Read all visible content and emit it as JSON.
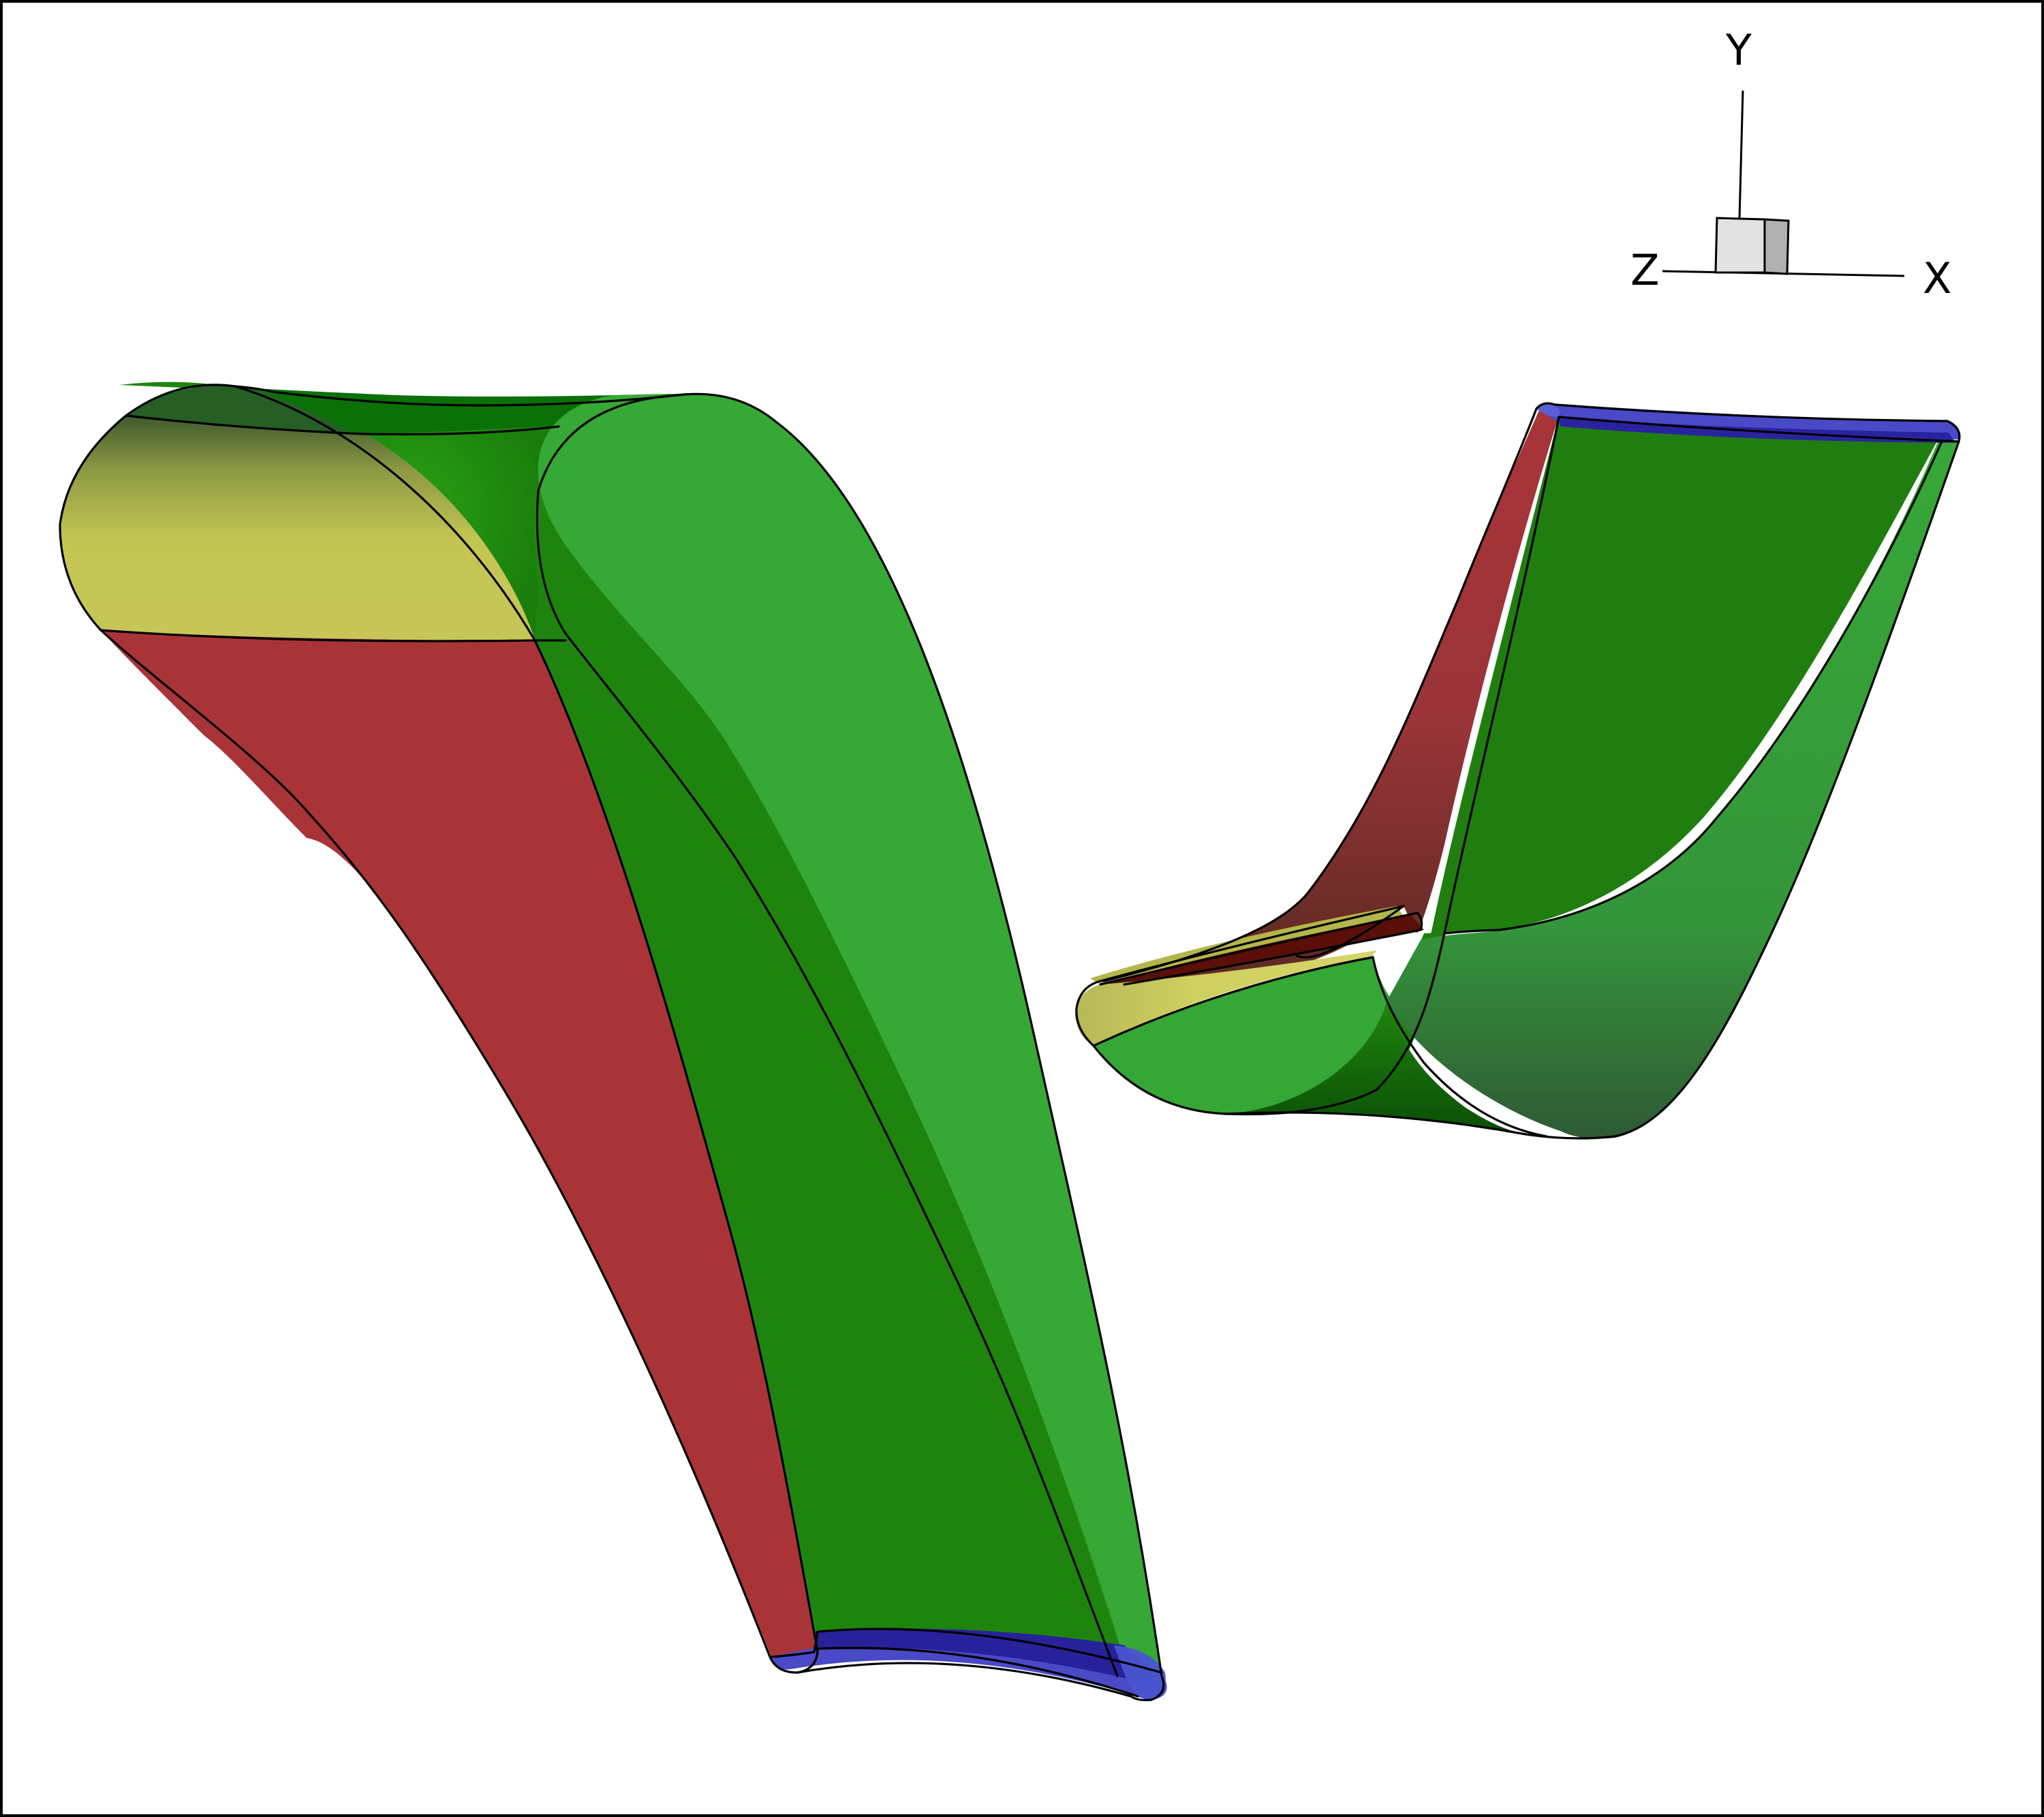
{
  "axes_triad": {
    "labels": {
      "y": "Y",
      "z": "Z",
      "x": "X"
    }
  },
  "colors": {
    "green_dark": "#1f850e",
    "green_light": "#36a836",
    "red": "#a83438",
    "yellow": "#c3c552",
    "blue": "#4a49c8",
    "blue_dark": "#27229a",
    "cube_face": "#e2e2e2",
    "cube_side": "#b0b0b0",
    "background": "#ffffff",
    "outline": "#000000"
  }
}
